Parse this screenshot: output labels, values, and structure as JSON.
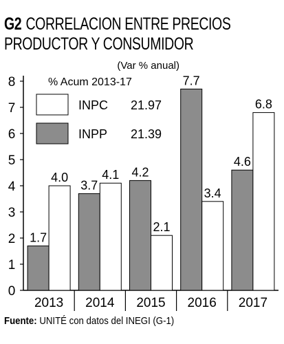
{
  "title": {
    "code": "G2",
    "line1": "CORRELACION ENTRE PRECIOS",
    "line2": "PRODUCTOR Y CONSUMIDOR"
  },
  "subtitle": "(Var % anual)",
  "legend_title": "% Acum 2013-17",
  "source": {
    "label": "Fuente:",
    "text": "UNITÉ con datos del INEGI (G-1)"
  },
  "colors": {
    "inpc": "#ffffff",
    "inpp": "#8c8c8c",
    "axis": "#000000"
  },
  "chart_data": {
    "type": "bar",
    "categories": [
      "2013",
      "2014",
      "2015",
      "2016",
      "2017"
    ],
    "series": [
      {
        "name": "INPP",
        "values": [
          1.7,
          3.7,
          4.2,
          7.7,
          4.6
        ],
        "labels": [
          "1.7",
          "3.7",
          "4.2",
          "7.7",
          "4.6"
        ],
        "acum": "21.39"
      },
      {
        "name": "INPC",
        "values": [
          4.0,
          4.1,
          2.1,
          3.4,
          6.8
        ],
        "labels": [
          "4.0",
          "4.1",
          "2.1",
          "3.4",
          "6.8"
        ],
        "acum": "21.97"
      }
    ],
    "ylim": [
      0,
      8
    ],
    "yticks": [
      "0",
      "1",
      "2",
      "3",
      "4",
      "5",
      "6",
      "7",
      "8"
    ],
    "legend_order": [
      "INPC",
      "INPP"
    ],
    "legend_position": "top-left",
    "grid": false
  }
}
